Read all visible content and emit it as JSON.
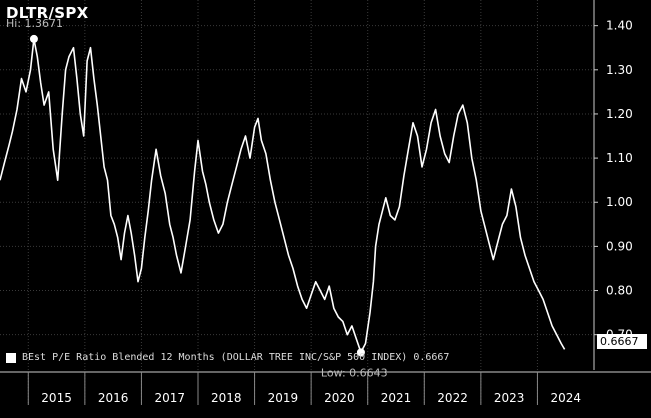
{
  "chart_data": {
    "type": "line",
    "title": "DLTR/SPX",
    "legend_label": "BEst P/E Ratio Blended 12 Months (DOLLAR TREE INC/S&P 500 INDEX) 0.6667",
    "hi_label": "Hi: 1.3671",
    "low_label": "Low: 0.6643",
    "last_value_label": "0.6667",
    "ylim": [
      0.62,
      1.44
    ],
    "y_ticks": [
      "1.40",
      "1.30",
      "1.20",
      "1.10",
      "1.00",
      "0.90",
      "0.80",
      "0.70"
    ],
    "x_tick_labels": [
      "2015",
      "2016",
      "2017",
      "2018",
      "2019",
      "2020",
      "2021",
      "2022",
      "2023",
      "2024"
    ],
    "x_range": [
      2014.5,
      2025.0
    ],
    "grid": true,
    "series": [
      {
        "x": [
          2014.5,
          2014.58,
          2014.66,
          2014.72,
          2014.8,
          2014.88,
          2014.96,
          2015.04,
          2015.1,
          2015.16,
          2015.22,
          2015.28,
          2015.36,
          2015.44,
          2015.52,
          2015.6,
          2015.66,
          2015.72,
          2015.8,
          2015.86,
          2015.92,
          2015.98,
          2016.04,
          2016.1,
          2016.16,
          2016.22,
          2016.28,
          2016.34,
          2016.4,
          2016.46,
          2016.52,
          2016.58,
          2016.64,
          2016.7,
          2016.76,
          2016.82,
          2016.88,
          2016.94,
          2017.0,
          2017.06,
          2017.12,
          2017.18,
          2017.26,
          2017.34,
          2017.42,
          2017.5,
          2017.56,
          2017.62,
          2017.7,
          2017.78,
          2017.86,
          2017.94,
          2018.0,
          2018.08,
          2018.14,
          2018.2,
          2018.28,
          2018.36,
          2018.44,
          2018.52,
          2018.6,
          2018.68,
          2018.76,
          2018.84,
          2018.92,
          2019.0,
          2019.06,
          2019.12,
          2019.2,
          2019.28,
          2019.36,
          2019.44,
          2019.52,
          2019.6,
          2019.68,
          2019.76,
          2019.84,
          2019.92,
          2020.0,
          2020.08,
          2020.16,
          2020.24,
          2020.32,
          2020.4,
          2020.48,
          2020.56,
          2020.64,
          2020.72,
          2020.8,
          2020.88,
          2020.96,
          2021.04,
          2021.1,
          2021.14,
          2021.2,
          2021.26,
          2021.32,
          2021.4,
          2021.48,
          2021.56,
          2021.64,
          2021.72,
          2021.8,
          2021.88,
          2021.96,
          2022.04,
          2022.12,
          2022.2,
          2022.28,
          2022.36,
          2022.44,
          2022.52,
          2022.6,
          2022.68,
          2022.76,
          2022.84,
          2022.92,
          2023.0,
          2023.08,
          2023.16,
          2023.22,
          2023.3,
          2023.38,
          2023.46,
          2023.54,
          2023.62,
          2023.7,
          2023.78,
          2023.86,
          2023.94,
          2024.02,
          2024.1,
          2024.18,
          2024.26,
          2024.34,
          2024.42,
          2024.48
        ],
        "values": [
          1.05,
          1.09,
          1.13,
          1.16,
          1.21,
          1.28,
          1.25,
          1.3,
          1.37,
          1.33,
          1.27,
          1.22,
          1.25,
          1.12,
          1.05,
          1.2,
          1.3,
          1.33,
          1.35,
          1.28,
          1.2,
          1.15,
          1.32,
          1.35,
          1.28,
          1.22,
          1.15,
          1.08,
          1.05,
          0.97,
          0.95,
          0.92,
          0.87,
          0.93,
          0.97,
          0.93,
          0.88,
          0.82,
          0.85,
          0.92,
          0.98,
          1.05,
          1.12,
          1.06,
          1.02,
          0.95,
          0.92,
          0.88,
          0.84,
          0.9,
          0.96,
          1.07,
          1.14,
          1.07,
          1.04,
          1.0,
          0.96,
          0.93,
          0.95,
          1.0,
          1.04,
          1.08,
          1.12,
          1.15,
          1.1,
          1.17,
          1.19,
          1.14,
          1.11,
          1.05,
          1.0,
          0.96,
          0.92,
          0.88,
          0.85,
          0.81,
          0.78,
          0.76,
          0.79,
          0.82,
          0.8,
          0.78,
          0.81,
          0.76,
          0.74,
          0.73,
          0.7,
          0.72,
          0.69,
          0.66,
          0.68,
          0.75,
          0.82,
          0.9,
          0.95,
          0.98,
          1.01,
          0.97,
          0.96,
          0.99,
          1.06,
          1.12,
          1.18,
          1.15,
          1.08,
          1.12,
          1.18,
          1.21,
          1.15,
          1.11,
          1.09,
          1.15,
          1.2,
          1.22,
          1.18,
          1.1,
          1.05,
          0.98,
          0.94,
          0.9,
          0.87,
          0.91,
          0.95,
          0.97,
          1.03,
          0.99,
          0.92,
          0.88,
          0.85,
          0.82,
          0.8,
          0.78,
          0.75,
          0.72,
          0.7,
          0.68,
          0.6667
        ]
      }
    ]
  }
}
